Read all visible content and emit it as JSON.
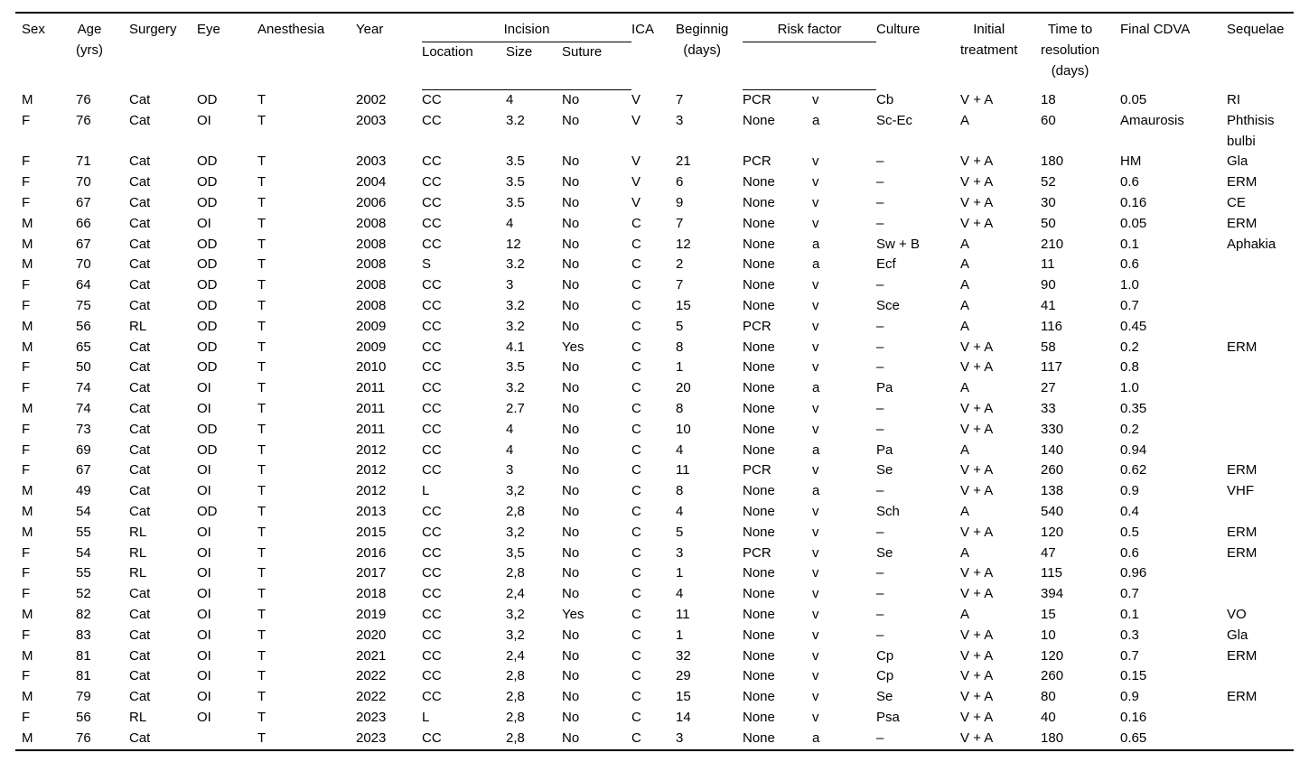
{
  "table": {
    "header": {
      "sex": "Sex",
      "age": "Age\n(yrs)",
      "surgery": "Surgery",
      "eye": "Eye",
      "anesthesia": "Anesthesia",
      "year": "Year",
      "incision": "Incision",
      "incision_sub": {
        "location": "Location",
        "size": "Size",
        "suture": "Suture"
      },
      "ica": "ICA",
      "beginning": "Beginnig\n(days)",
      "risk_factor": "Risk factor",
      "culture": "Culture",
      "initial_treatment": "Initial\ntreatment",
      "time_to_resolution": "Time to\nresolution\n(days)",
      "final_cdva": "Final CDVA",
      "sequelae": "Sequelae"
    },
    "rows": [
      [
        "M",
        "76",
        "Cat",
        "OD",
        "T",
        "2002",
        "CC",
        "4",
        "No",
        "V",
        "7",
        "PCR",
        "v",
        "Cb",
        "V + A",
        "18",
        "0.05",
        "RI"
      ],
      [
        "F",
        "76",
        "Cat",
        "OI",
        "T",
        "2003",
        "CC",
        "3.2",
        "No",
        "V",
        "3",
        "None",
        "a",
        "Sc-Ec",
        "A",
        "60",
        "Amaurosis",
        "Phthisis\nbulbi"
      ],
      [
        "F",
        "71",
        "Cat",
        "OD",
        "T",
        "2003",
        "CC",
        "3.5",
        "No",
        "V",
        "21",
        "PCR",
        "v",
        "–",
        "V + A",
        "180",
        "HM",
        "Gla"
      ],
      [
        "F",
        "70",
        "Cat",
        "OD",
        "T",
        "2004",
        "CC",
        "3.5",
        "No",
        "V",
        "6",
        "None",
        "v",
        "–",
        "V + A",
        "52",
        "0.6",
        "ERM"
      ],
      [
        "F",
        "67",
        "Cat",
        "OD",
        "T",
        "2006",
        "CC",
        "3.5",
        "No",
        "V",
        "9",
        "None",
        "v",
        "–",
        "V + A",
        "30",
        "0.16",
        "CE"
      ],
      [
        "M",
        "66",
        "Cat",
        "OI",
        "T",
        "2008",
        "CC",
        "4",
        "No",
        "C",
        "7",
        "None",
        "v",
        "–",
        "V + A",
        "50",
        "0.05",
        "ERM"
      ],
      [
        "M",
        "67",
        "Cat",
        "OD",
        "T",
        "2008",
        "CC",
        "12",
        "No",
        "C",
        "12",
        "None",
        "a",
        "Sw + B",
        "A",
        "210",
        "0.1",
        "Aphakia"
      ],
      [
        "M",
        "70",
        "Cat",
        "OD",
        "T",
        "2008",
        "S",
        "3.2",
        "No",
        "C",
        "2",
        "None",
        "a",
        "Ecf",
        "A",
        "11",
        "0.6",
        ""
      ],
      [
        "F",
        "64",
        "Cat",
        "OD",
        "T",
        "2008",
        "CC",
        "3",
        "No",
        "C",
        "7",
        "None",
        "v",
        "–",
        "A",
        "90",
        "1.0",
        ""
      ],
      [
        "F",
        "75",
        "Cat",
        "OD",
        "T",
        "2008",
        "CC",
        "3.2",
        "No",
        "C",
        "15",
        "None",
        "v",
        "Sce",
        "A",
        "41",
        "0.7",
        ""
      ],
      [
        "M",
        "56",
        "RL",
        "OD",
        "T",
        "2009",
        "CC",
        "3.2",
        "No",
        "C",
        "5",
        "PCR",
        "v",
        "–",
        "A",
        "116",
        "0.45",
        ""
      ],
      [
        "M",
        "65",
        "Cat",
        "OD",
        "T",
        "2009",
        "CC",
        "4.1",
        "Yes",
        "C",
        "8",
        "None",
        "v",
        "–",
        "V + A",
        "58",
        "0.2",
        "ERM"
      ],
      [
        "F",
        "50",
        "Cat",
        "OD",
        "T",
        "2010",
        "CC",
        "3.5",
        "No",
        "C",
        "1",
        "None",
        "v",
        "–",
        "V + A",
        "117",
        "0.8",
        ""
      ],
      [
        "F",
        "74",
        "Cat",
        "OI",
        "T",
        "2011",
        "CC",
        "3.2",
        "No",
        "C",
        "20",
        "None",
        "a",
        "Pa",
        "A",
        "27",
        "1.0",
        ""
      ],
      [
        "M",
        "74",
        "Cat",
        "OI",
        "T",
        "2011",
        "CC",
        "2.7",
        "No",
        "C",
        "8",
        "None",
        "v",
        "–",
        "V + A",
        "33",
        "0.35",
        ""
      ],
      [
        "F",
        "73",
        "Cat",
        "OD",
        "T",
        "2011",
        "CC",
        "4",
        "No",
        "C",
        "10",
        "None",
        "v",
        "–",
        "V + A",
        "330",
        "0.2",
        ""
      ],
      [
        "F",
        "69",
        "Cat",
        "OD",
        "T",
        "2012",
        "CC",
        "4",
        "No",
        "C",
        "4",
        "None",
        "a",
        "Pa",
        "A",
        "140",
        "0.94",
        ""
      ],
      [
        "F",
        "67",
        "Cat",
        "OI",
        "T",
        "2012",
        "CC",
        "3",
        "No",
        "C",
        "11",
        "PCR",
        "v",
        "Se",
        "V + A",
        "260",
        "0.62",
        "ERM"
      ],
      [
        "M",
        "49",
        "Cat",
        "OI",
        "T",
        "2012",
        "L",
        "3,2",
        "No",
        "C",
        "8",
        "None",
        "a",
        "–",
        "V + A",
        "138",
        "0.9",
        "VHF"
      ],
      [
        "M",
        "54",
        "Cat",
        "OD",
        "T",
        "2013",
        "CC",
        "2,8",
        "No",
        "C",
        "4",
        "None",
        "v",
        "Sch",
        "A",
        "540",
        "0.4",
        ""
      ],
      [
        "M",
        "55",
        "RL",
        "OI",
        "T",
        "2015",
        "CC",
        "3,2",
        "No",
        "C",
        "5",
        "None",
        "v",
        "–",
        "V + A",
        "120",
        "0.5",
        "ERM"
      ],
      [
        "F",
        "54",
        "RL",
        "OI",
        "T",
        "2016",
        "CC",
        "3,5",
        "No",
        "C",
        "3",
        "PCR",
        "v",
        "Se",
        "A",
        "47",
        "0.6",
        "ERM"
      ],
      [
        "F",
        "55",
        "RL",
        "OI",
        "T",
        "2017",
        "CC",
        "2,8",
        "No",
        "C",
        "1",
        "None",
        "v",
        "–",
        "V + A",
        "115",
        "0.96",
        ""
      ],
      [
        "F",
        "52",
        "Cat",
        "OI",
        "T",
        "2018",
        "CC",
        "2,4",
        "No",
        "C",
        "4",
        "None",
        "v",
        "–",
        "V + A",
        "394",
        "0.7",
        ""
      ],
      [
        "M",
        "82",
        "Cat",
        "OI",
        "T",
        "2019",
        "CC",
        "3,2",
        "Yes",
        "C",
        "11",
        "None",
        "v",
        "–",
        "A",
        "15",
        "0.1",
        "VO"
      ],
      [
        "F",
        "83",
        "Cat",
        "OI",
        "T",
        "2020",
        "CC",
        "3,2",
        "No",
        "C",
        "1",
        "None",
        "v",
        "–",
        "V + A",
        "10",
        "0.3",
        "Gla"
      ],
      [
        "M",
        "81",
        "Cat",
        "OI",
        "T",
        "2021",
        "CC",
        "2,4",
        "No",
        "C",
        "32",
        "None",
        "v",
        "Cp",
        "V + A",
        "120",
        "0.7",
        "ERM"
      ],
      [
        "F",
        "81",
        "Cat",
        "OI",
        "T",
        "2022",
        "CC",
        "2,8",
        "No",
        "C",
        "29",
        "None",
        "v",
        "Cp",
        "V + A",
        "260",
        "0.15",
        ""
      ],
      [
        "M",
        "79",
        "Cat",
        "OI",
        "T",
        "2022",
        "CC",
        "2,8",
        "No",
        "C",
        "15",
        "None",
        "v",
        "Se",
        "V + A",
        "80",
        "0.9",
        "ERM"
      ],
      [
        "F",
        "56",
        "RL",
        "OI",
        "T",
        "2023",
        "L",
        "2,8",
        "No",
        "C",
        "14",
        "None",
        "v",
        "Psa",
        "V + A",
        "40",
        "0.16",
        ""
      ],
      [
        "M",
        "76",
        "Cat",
        "",
        "T",
        "2023",
        "CC",
        "2,8",
        "No",
        "C",
        "3",
        "None",
        "a",
        "–",
        "V + A",
        "180",
        "0.65",
        ""
      ]
    ]
  }
}
